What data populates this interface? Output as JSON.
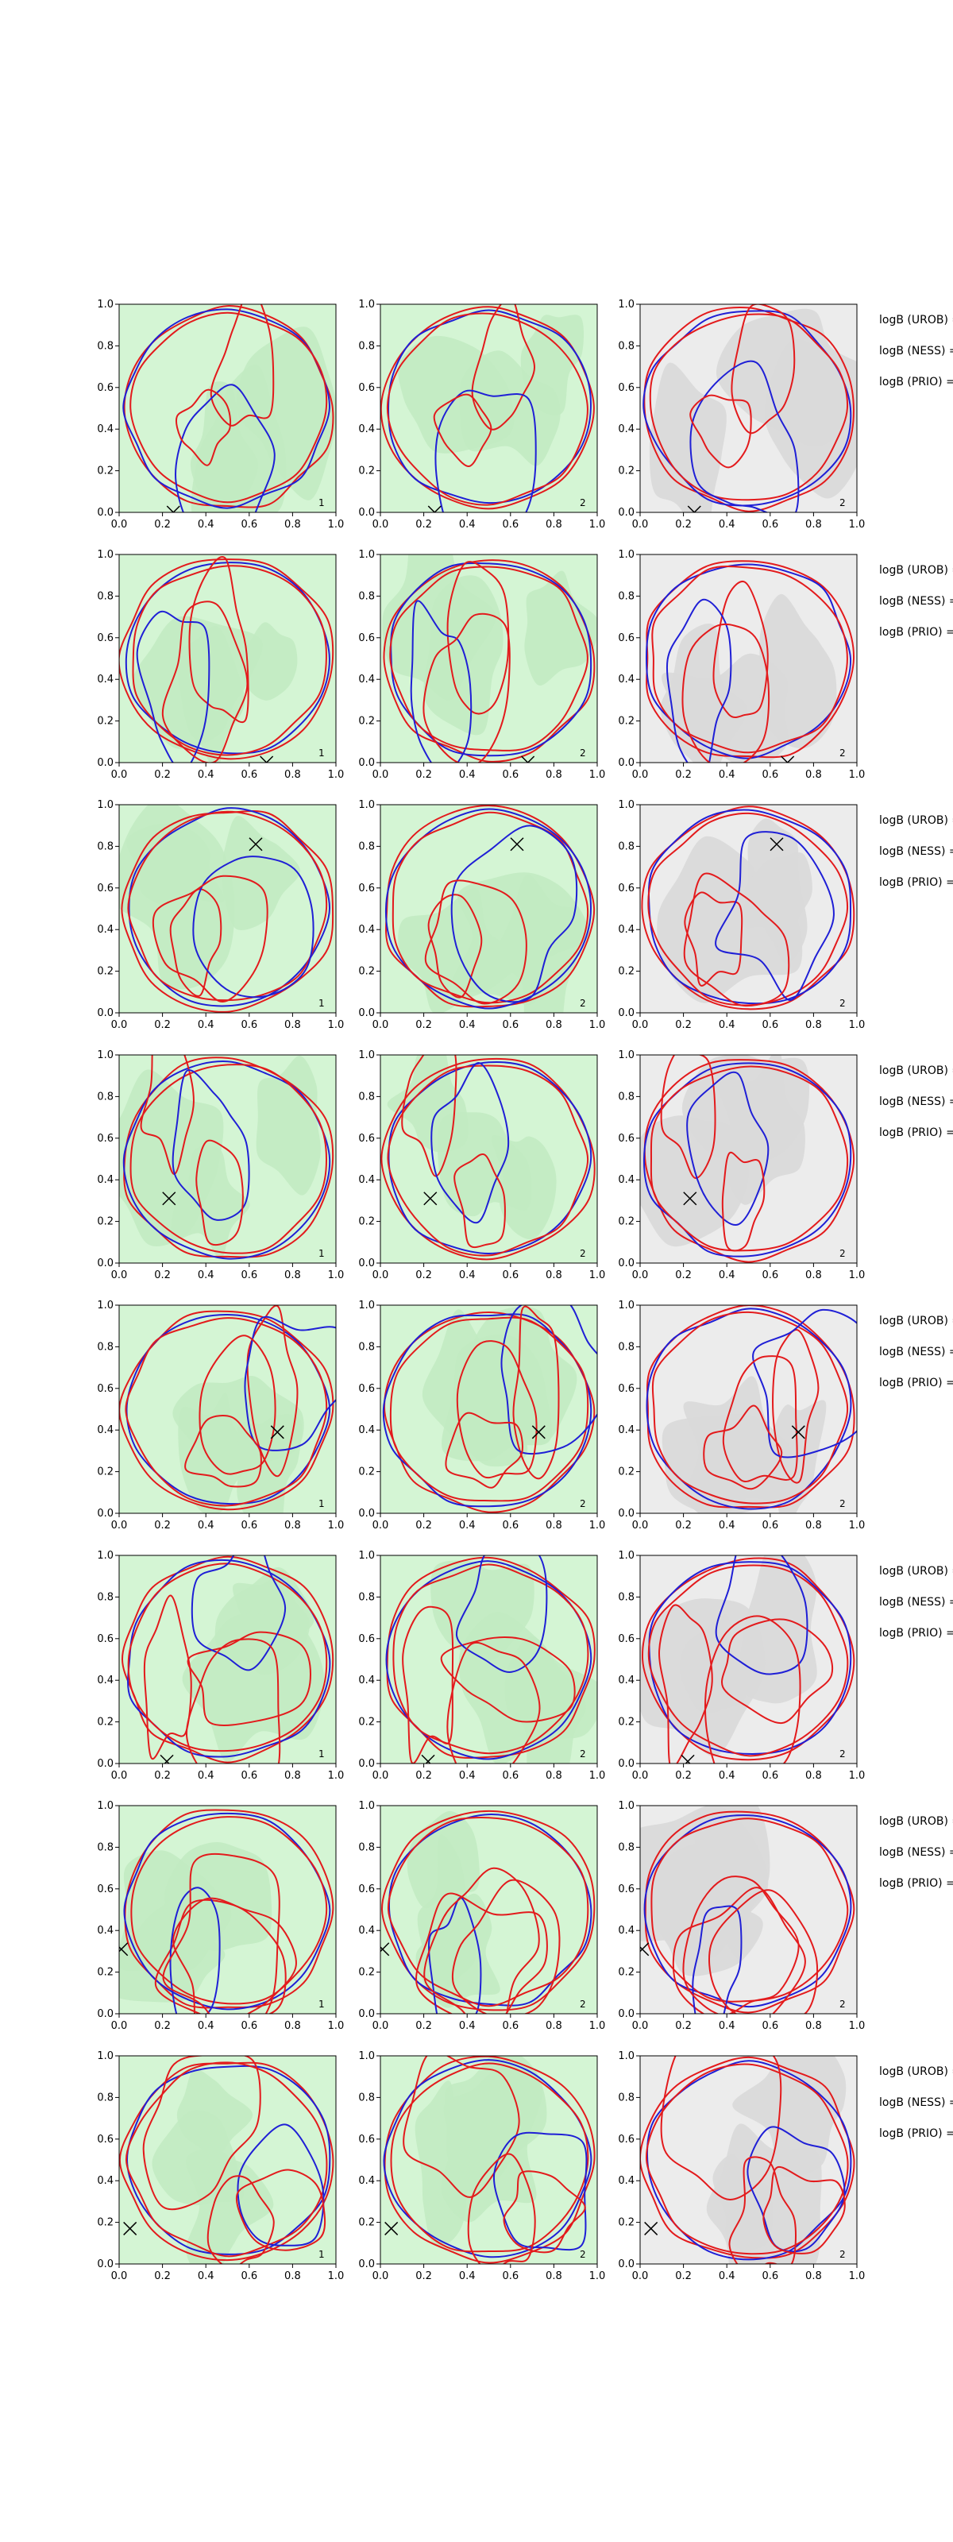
{
  "figure": {
    "rows": 8,
    "cols": 3,
    "panel_numbers": [
      "1",
      "2",
      "2"
    ],
    "side_labels": [
      "logB (UROB) =",
      "logB (NESS) =",
      "logB (PRIO) ="
    ],
    "colors": {
      "green_fill_light": "#d4f5d4",
      "green_fill_mid": "#c2ebc2",
      "gray_fill_light": "#ececec",
      "gray_fill_mid": "#d9d9d9",
      "contour_red": "#e31a1c",
      "contour_blue": "#1f1fd6",
      "marker": "#000000"
    }
  },
  "chart_data": {
    "type": "contour",
    "title": "",
    "xlabel": "",
    "ylabel": "",
    "xlim": [
      0,
      1
    ],
    "ylim": [
      0,
      1
    ],
    "x_ticks": [
      "0.0",
      "0.2",
      "0.4",
      "0.6",
      "0.8",
      "1.0"
    ],
    "y_ticks": [
      "0.0",
      "0.2",
      "0.4",
      "0.6",
      "0.8",
      "1.0"
    ],
    "grid": false,
    "legend": "none",
    "markers": [
      {
        "row": 1,
        "x": 0.25,
        "y": 0.0
      },
      {
        "row": 2,
        "x": 0.68,
        "y": 0.0
      },
      {
        "row": 3,
        "x": 0.63,
        "y": 0.81
      },
      {
        "row": 4,
        "x": 0.23,
        "y": 0.31
      },
      {
        "row": 5,
        "x": 0.73,
        "y": 0.39
      },
      {
        "row": 6,
        "x": 0.22,
        "y": 0.01
      },
      {
        "row": 7,
        "x": 0.01,
        "y": 0.31
      },
      {
        "row": 8,
        "x": 0.05,
        "y": 0.17
      }
    ]
  }
}
